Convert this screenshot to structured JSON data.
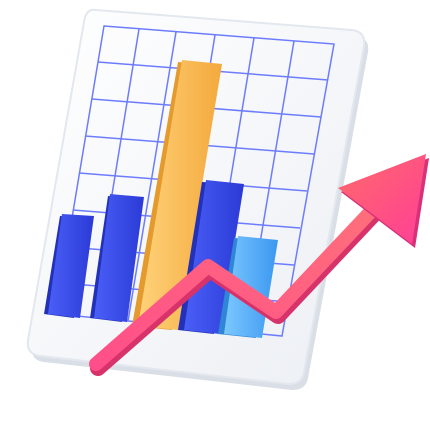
{
  "illustration": {
    "subject": "growth-chart-icon",
    "colors": {
      "board": "#f3f5f8",
      "board_edge": "#dfe3ea",
      "grid": "#6b7bff",
      "bar_blue": "#3d53f2",
      "bar_blue_dark": "#2a3bd0",
      "bar_yellow": "#ffc25a",
      "bar_light_blue": "#56b4ff",
      "arrow_pink": "#ff5a86",
      "arrow_head": "#ff4f8a"
    }
  }
}
